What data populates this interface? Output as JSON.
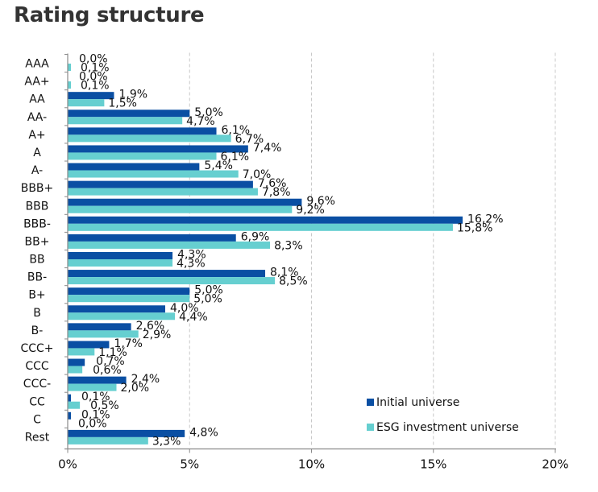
{
  "colors": {
    "initial": "#0a4fa3",
    "esg": "#66cfd0",
    "grid": "#c8c8c8",
    "axis": "#8a8a8a",
    "text": "#111111",
    "title": "#333333"
  },
  "chart_data": {
    "type": "bar",
    "orientation": "horizontal",
    "title": "Rating structure",
    "xlabel": "",
    "ylabel": "",
    "xlim": [
      0,
      20
    ],
    "x_ticks": [
      0,
      5,
      10,
      15,
      20
    ],
    "x_tick_labels": [
      "0%",
      "5%",
      "10%",
      "15%",
      "20%"
    ],
    "grid": "vertical dashed",
    "legend_position": "bottom-right",
    "categories": [
      "AAA",
      "AA+",
      "AA",
      "AA-",
      "A+",
      "A",
      "A-",
      "BBB+",
      "BBB",
      "BBB-",
      "BB+",
      "BB",
      "BB-",
      "B+",
      "B",
      "B-",
      "CCC+",
      "CCC",
      "CCC-",
      "CC",
      "C",
      "Rest"
    ],
    "series": [
      {
        "name": "Initial universe",
        "values": [
          0.0,
          0.0,
          1.9,
          5.0,
          6.1,
          7.4,
          5.4,
          7.6,
          9.6,
          16.2,
          6.9,
          4.3,
          8.1,
          5.0,
          4.0,
          2.6,
          1.7,
          0.7,
          2.4,
          0.1,
          0.1,
          4.8
        ],
        "labels": [
          "0,0%",
          "0,0%",
          "1,9%",
          "5,0%",
          "6,1%",
          "7,4%",
          "5,4%",
          "7,6%",
          "9,6%",
          "16,2%",
          "6,9%",
          "4,3%",
          "8,1%",
          "5,0%",
          "4,0%",
          "2,6%",
          "1,7%",
          "0,7%",
          "2,4%",
          "0,1%",
          "0,1%",
          "4,8%"
        ]
      },
      {
        "name": "ESG investment universe",
        "values": [
          0.1,
          0.1,
          1.5,
          4.7,
          6.7,
          6.1,
          7.0,
          7.8,
          9.2,
          15.8,
          8.3,
          4.3,
          8.5,
          5.0,
          4.4,
          2.9,
          1.1,
          0.6,
          2.0,
          0.5,
          0.0,
          3.3
        ],
        "labels": [
          "0,1%",
          "0,1%",
          "1,5%",
          "4,7%",
          "6,7%",
          "6,1%",
          "7,0%",
          "7,8%",
          "9,2%",
          "15,8%",
          "8,3%",
          "4,3%",
          "8,5%",
          "5,0%",
          "4,4%",
          "2,9%",
          "1,1%",
          "0,6%",
          "2,0%",
          "0,5%",
          "0,0%",
          "3,3%"
        ]
      }
    ]
  }
}
